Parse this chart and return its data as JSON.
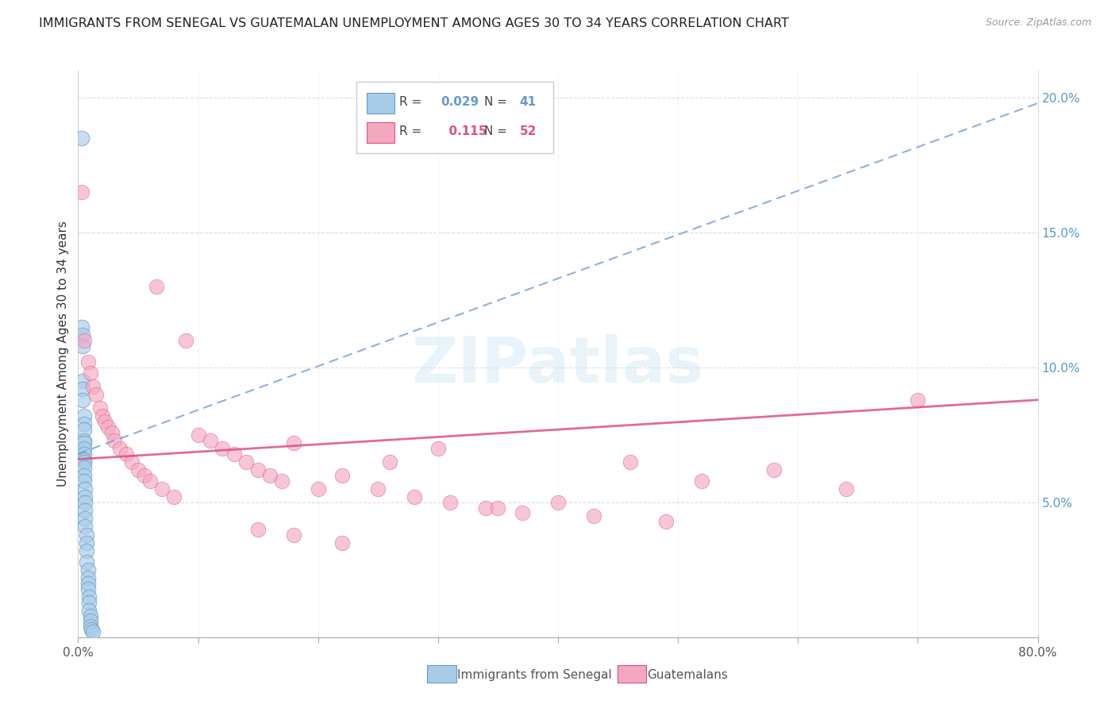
{
  "title": "IMMIGRANTS FROM SENEGAL VS GUATEMALAN UNEMPLOYMENT AMONG AGES 30 TO 34 YEARS CORRELATION CHART",
  "source": "Source: ZipAtlas.com",
  "ylabel": "Unemployment Among Ages 30 to 34 years",
  "xlim": [
    0.0,
    0.8
  ],
  "ylim": [
    0.0,
    0.21
  ],
  "x_ticks": [
    0.0,
    0.1,
    0.2,
    0.3,
    0.4,
    0.5,
    0.6,
    0.7,
    0.8
  ],
  "x_tick_labels_show": [
    "0.0%",
    "",
    "",
    "",
    "",
    "",
    "",
    "",
    "80.0%"
  ],
  "y_ticks_right": [
    0.0,
    0.05,
    0.1,
    0.15,
    0.2
  ],
  "y_tick_labels_right": [
    "",
    "5.0%",
    "10.0%",
    "15.0%",
    "20.0%"
  ],
  "color_senegal": "#a8cce8",
  "color_guatemala": "#f4a8c0",
  "line_color_senegal": "#6699cc",
  "line_color_guatemala": "#e05080",
  "R_senegal": 0.029,
  "N_senegal": 41,
  "R_guatemala": 0.115,
  "N_guatemala": 52,
  "watermark": "ZIPatlas",
  "legend_label_senegal": "Immigrants from Senegal",
  "legend_label_guatemala": "Guatemalans",
  "senegal_x": [
    0.003,
    0.003,
    0.004,
    0.004,
    0.004,
    0.004,
    0.004,
    0.005,
    0.005,
    0.005,
    0.005,
    0.005,
    0.005,
    0.005,
    0.005,
    0.005,
    0.005,
    0.005,
    0.005,
    0.006,
    0.006,
    0.006,
    0.006,
    0.006,
    0.006,
    0.007,
    0.007,
    0.007,
    0.007,
    0.008,
    0.008,
    0.008,
    0.008,
    0.009,
    0.009,
    0.009,
    0.01,
    0.01,
    0.01,
    0.011,
    0.012
  ],
  "senegal_y": [
    0.185,
    0.115,
    0.112,
    0.108,
    0.095,
    0.092,
    0.088,
    0.082,
    0.079,
    0.077,
    0.073,
    0.072,
    0.07,
    0.068,
    0.066,
    0.065,
    0.063,
    0.06,
    0.058,
    0.055,
    0.052,
    0.05,
    0.047,
    0.044,
    0.041,
    0.038,
    0.035,
    0.032,
    0.028,
    0.025,
    0.022,
    0.02,
    0.018,
    0.015,
    0.013,
    0.01,
    0.008,
    0.006,
    0.004,
    0.003,
    0.002
  ],
  "guatemala_x": [
    0.003,
    0.005,
    0.008,
    0.01,
    0.012,
    0.015,
    0.018,
    0.02,
    0.022,
    0.025,
    0.028,
    0.03,
    0.035,
    0.04,
    0.045,
    0.05,
    0.055,
    0.06,
    0.065,
    0.07,
    0.08,
    0.09,
    0.1,
    0.11,
    0.12,
    0.13,
    0.14,
    0.15,
    0.16,
    0.17,
    0.18,
    0.2,
    0.22,
    0.25,
    0.28,
    0.31,
    0.34,
    0.37,
    0.4,
    0.43,
    0.46,
    0.49,
    0.52,
    0.58,
    0.64,
    0.7,
    0.15,
    0.18,
    0.22,
    0.26,
    0.3,
    0.35
  ],
  "guatemala_y": [
    0.165,
    0.11,
    0.102,
    0.098,
    0.093,
    0.09,
    0.085,
    0.082,
    0.08,
    0.078,
    0.076,
    0.073,
    0.07,
    0.068,
    0.065,
    0.062,
    0.06,
    0.058,
    0.13,
    0.055,
    0.052,
    0.11,
    0.075,
    0.073,
    0.07,
    0.068,
    0.065,
    0.062,
    0.06,
    0.058,
    0.072,
    0.055,
    0.06,
    0.055,
    0.052,
    0.05,
    0.048,
    0.046,
    0.05,
    0.045,
    0.065,
    0.043,
    0.058,
    0.062,
    0.055,
    0.088,
    0.04,
    0.038,
    0.035,
    0.065,
    0.07,
    0.048
  ],
  "sen_trend_x0": 0.0,
  "sen_trend_y0": 0.068,
  "sen_trend_x1": 0.8,
  "sen_trend_y1": 0.198,
  "gua_trend_x0": 0.0,
  "gua_trend_y0": 0.066,
  "gua_trend_x1": 0.8,
  "gua_trend_y1": 0.088
}
